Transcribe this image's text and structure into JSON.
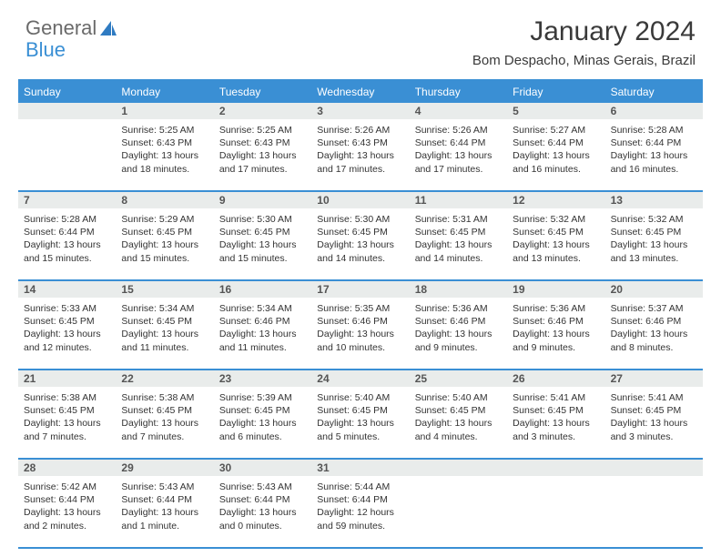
{
  "logo": {
    "text1": "General",
    "text2": "Blue"
  },
  "title": "January 2024",
  "subtitle": "Bom Despacho, Minas Gerais, Brazil",
  "colors": {
    "brand": "#3a8fd4",
    "daynum_bg": "#e9eceb",
    "text": "#333333",
    "title_color": "#3a3a3a",
    "background": "#ffffff"
  },
  "layout": {
    "columns": 7,
    "start_weekday": "Sunday",
    "first_day_column": 1,
    "font_family": "Arial",
    "title_fontsize": 30,
    "subtitle_fontsize": 15,
    "weekday_fontsize": 12,
    "daynum_fontsize": 12,
    "dayinfo_fontsize": 10.5
  },
  "weekdays": [
    "Sunday",
    "Monday",
    "Tuesday",
    "Wednesday",
    "Thursday",
    "Friday",
    "Saturday"
  ],
  "days": [
    {
      "num": 1,
      "sunrise": "5:25 AM",
      "sunset": "6:43 PM",
      "daylight": "13 hours and 18 minutes."
    },
    {
      "num": 2,
      "sunrise": "5:25 AM",
      "sunset": "6:43 PM",
      "daylight": "13 hours and 17 minutes."
    },
    {
      "num": 3,
      "sunrise": "5:26 AM",
      "sunset": "6:43 PM",
      "daylight": "13 hours and 17 minutes."
    },
    {
      "num": 4,
      "sunrise": "5:26 AM",
      "sunset": "6:44 PM",
      "daylight": "13 hours and 17 minutes."
    },
    {
      "num": 5,
      "sunrise": "5:27 AM",
      "sunset": "6:44 PM",
      "daylight": "13 hours and 16 minutes."
    },
    {
      "num": 6,
      "sunrise": "5:28 AM",
      "sunset": "6:44 PM",
      "daylight": "13 hours and 16 minutes."
    },
    {
      "num": 7,
      "sunrise": "5:28 AM",
      "sunset": "6:44 PM",
      "daylight": "13 hours and 15 minutes."
    },
    {
      "num": 8,
      "sunrise": "5:29 AM",
      "sunset": "6:45 PM",
      "daylight": "13 hours and 15 minutes."
    },
    {
      "num": 9,
      "sunrise": "5:30 AM",
      "sunset": "6:45 PM",
      "daylight": "13 hours and 15 minutes."
    },
    {
      "num": 10,
      "sunrise": "5:30 AM",
      "sunset": "6:45 PM",
      "daylight": "13 hours and 14 minutes."
    },
    {
      "num": 11,
      "sunrise": "5:31 AM",
      "sunset": "6:45 PM",
      "daylight": "13 hours and 14 minutes."
    },
    {
      "num": 12,
      "sunrise": "5:32 AM",
      "sunset": "6:45 PM",
      "daylight": "13 hours and 13 minutes."
    },
    {
      "num": 13,
      "sunrise": "5:32 AM",
      "sunset": "6:45 PM",
      "daylight": "13 hours and 13 minutes."
    },
    {
      "num": 14,
      "sunrise": "5:33 AM",
      "sunset": "6:45 PM",
      "daylight": "13 hours and 12 minutes."
    },
    {
      "num": 15,
      "sunrise": "5:34 AM",
      "sunset": "6:45 PM",
      "daylight": "13 hours and 11 minutes."
    },
    {
      "num": 16,
      "sunrise": "5:34 AM",
      "sunset": "6:46 PM",
      "daylight": "13 hours and 11 minutes."
    },
    {
      "num": 17,
      "sunrise": "5:35 AM",
      "sunset": "6:46 PM",
      "daylight": "13 hours and 10 minutes."
    },
    {
      "num": 18,
      "sunrise": "5:36 AM",
      "sunset": "6:46 PM",
      "daylight": "13 hours and 9 minutes."
    },
    {
      "num": 19,
      "sunrise": "5:36 AM",
      "sunset": "6:46 PM",
      "daylight": "13 hours and 9 minutes."
    },
    {
      "num": 20,
      "sunrise": "5:37 AM",
      "sunset": "6:46 PM",
      "daylight": "13 hours and 8 minutes."
    },
    {
      "num": 21,
      "sunrise": "5:38 AM",
      "sunset": "6:45 PM",
      "daylight": "13 hours and 7 minutes."
    },
    {
      "num": 22,
      "sunrise": "5:38 AM",
      "sunset": "6:45 PM",
      "daylight": "13 hours and 7 minutes."
    },
    {
      "num": 23,
      "sunrise": "5:39 AM",
      "sunset": "6:45 PM",
      "daylight": "13 hours and 6 minutes."
    },
    {
      "num": 24,
      "sunrise": "5:40 AM",
      "sunset": "6:45 PM",
      "daylight": "13 hours and 5 minutes."
    },
    {
      "num": 25,
      "sunrise": "5:40 AM",
      "sunset": "6:45 PM",
      "daylight": "13 hours and 4 minutes."
    },
    {
      "num": 26,
      "sunrise": "5:41 AM",
      "sunset": "6:45 PM",
      "daylight": "13 hours and 3 minutes."
    },
    {
      "num": 27,
      "sunrise": "5:41 AM",
      "sunset": "6:45 PM",
      "daylight": "13 hours and 3 minutes."
    },
    {
      "num": 28,
      "sunrise": "5:42 AM",
      "sunset": "6:44 PM",
      "daylight": "13 hours and 2 minutes."
    },
    {
      "num": 29,
      "sunrise": "5:43 AM",
      "sunset": "6:44 PM",
      "daylight": "13 hours and 1 minute."
    },
    {
      "num": 30,
      "sunrise": "5:43 AM",
      "sunset": "6:44 PM",
      "daylight": "13 hours and 0 minutes."
    },
    {
      "num": 31,
      "sunrise": "5:44 AM",
      "sunset": "6:44 PM",
      "daylight": "12 hours and 59 minutes."
    }
  ],
  "labels": {
    "sunrise": "Sunrise:",
    "sunset": "Sunset:",
    "daylight": "Daylight:"
  }
}
